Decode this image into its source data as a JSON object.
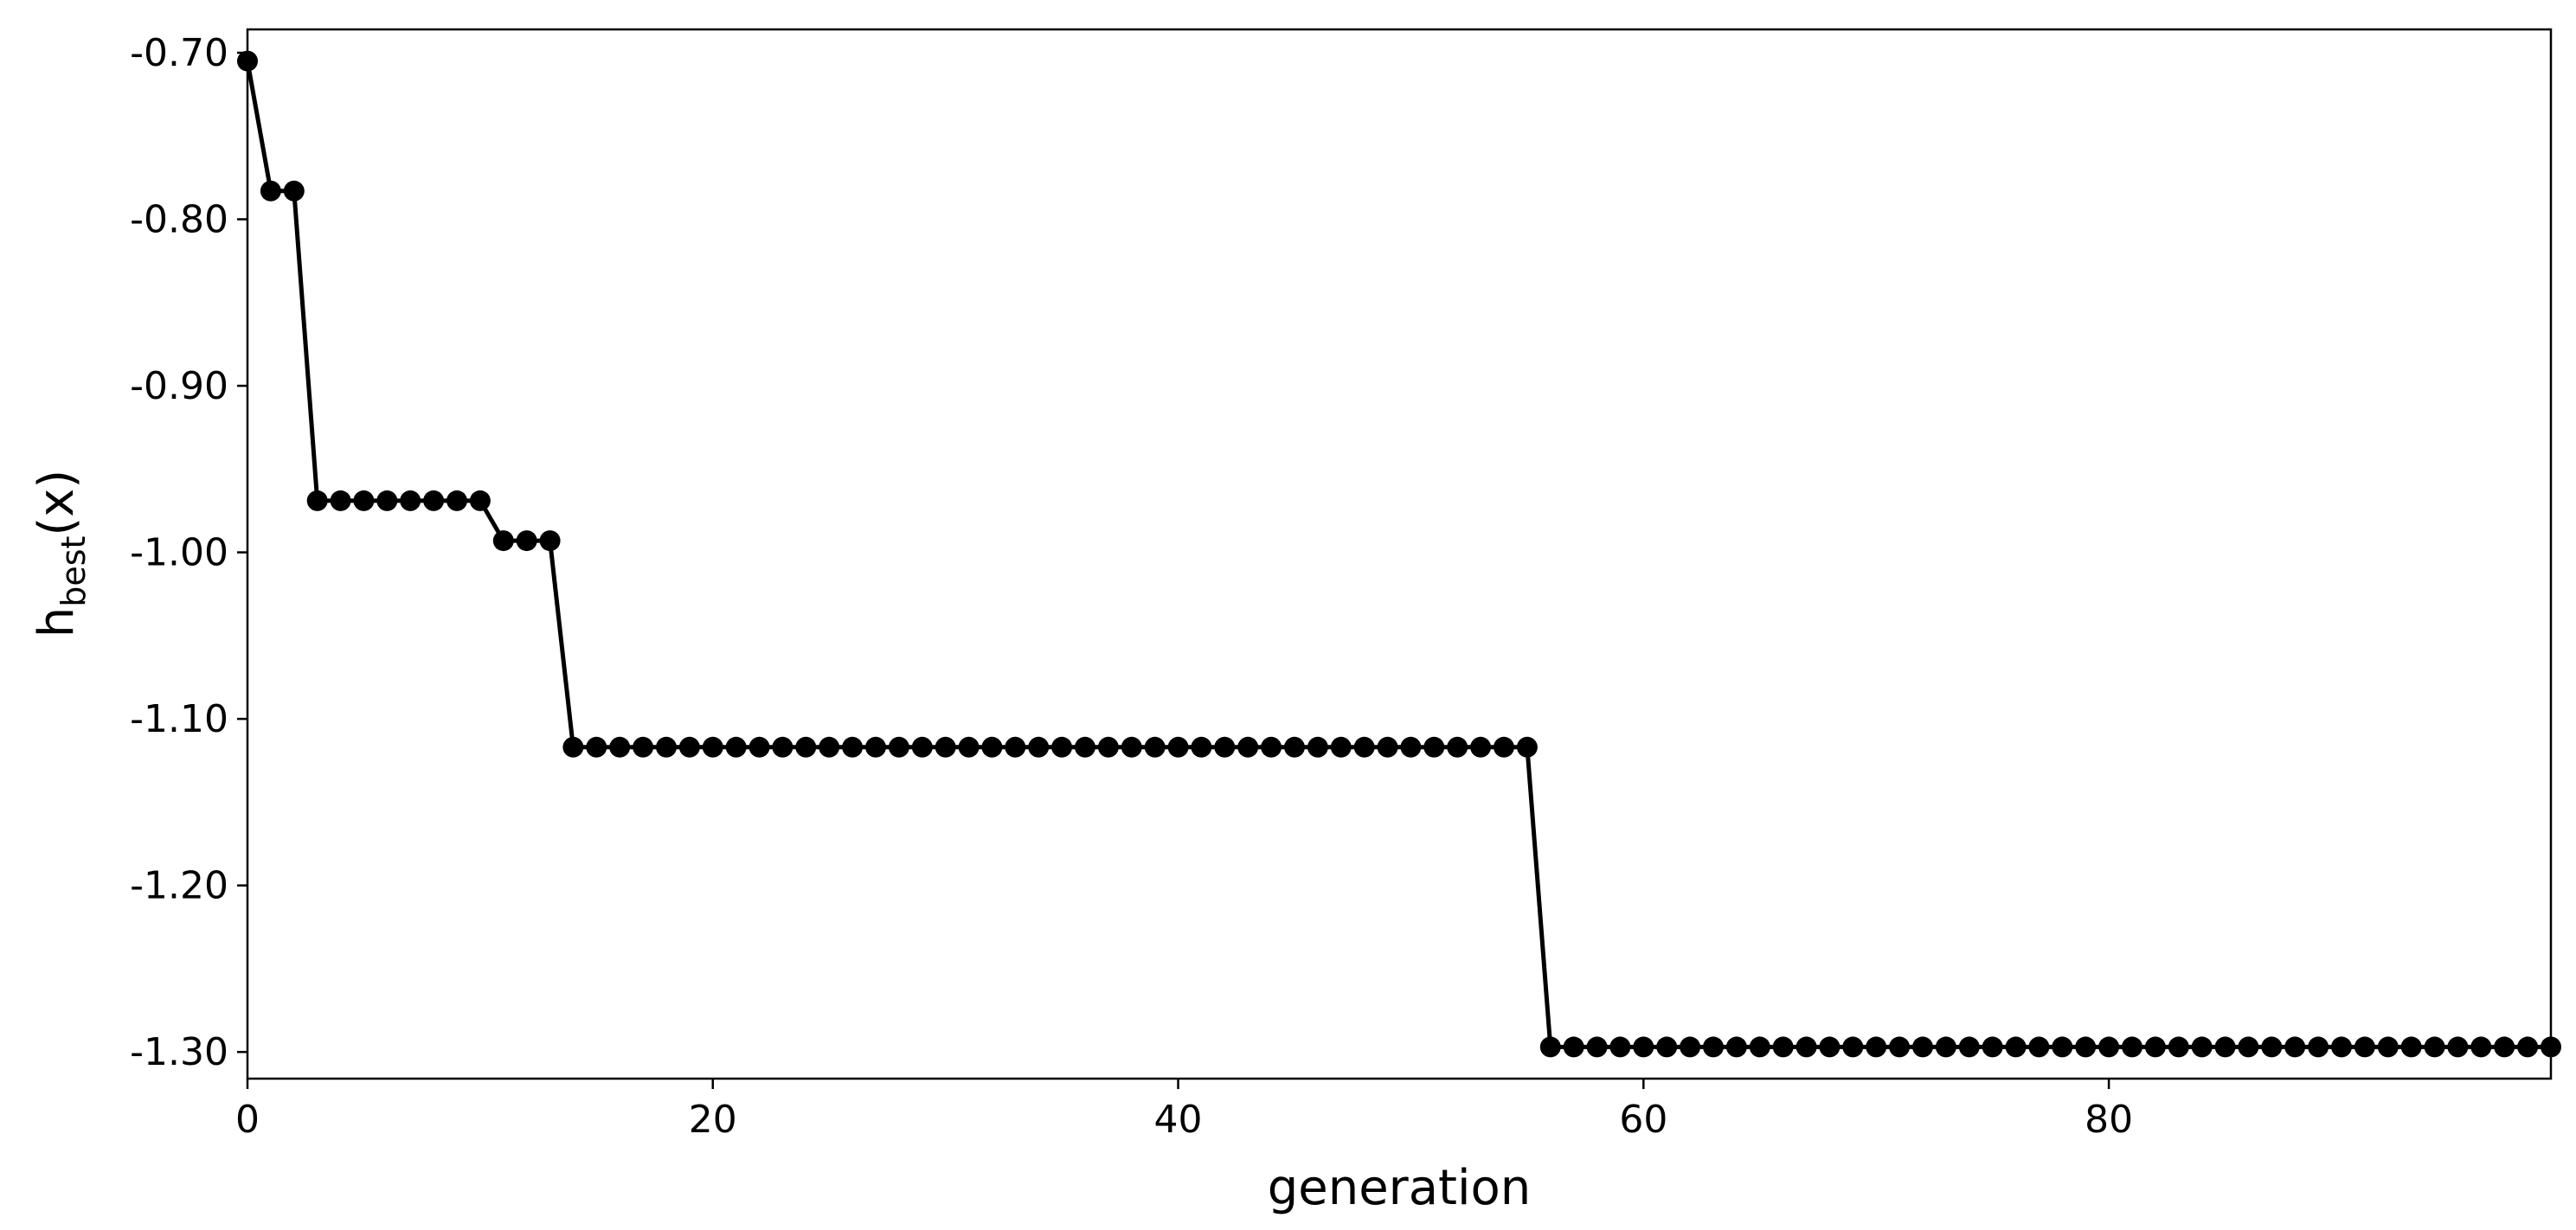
{
  "chart_data": {
    "type": "line",
    "title": "",
    "xlabel": "generation",
    "ylabel": {
      "main": "h",
      "sub": "best",
      "suffix": "(x)"
    },
    "xlim": [
      0,
      99
    ],
    "ylim": [
      -1.316,
      -0.686
    ],
    "xticks": [
      0,
      20,
      40,
      60,
      80
    ],
    "xtick_labels": [
      "0",
      "20",
      "40",
      "60",
      "80"
    ],
    "yticks": [
      -0.7,
      -0.8,
      -0.9,
      -1.0,
      -1.1,
      -1.2,
      -1.3
    ],
    "ytick_labels": [
      "-0.70",
      "-0.80",
      "-0.90",
      "-1.00",
      "-1.10",
      "-1.20",
      "-1.30"
    ],
    "grid": false,
    "series": [
      {
        "color": "#000000",
        "marker": "circle",
        "segments": [
          {
            "x_start": 0,
            "x_end": 0,
            "y": -0.705
          },
          {
            "x_start": 1,
            "x_end": 2,
            "y": -0.783
          },
          {
            "x_start": 3,
            "x_end": 10,
            "y": -0.969
          },
          {
            "x_start": 11,
            "x_end": 13,
            "y": -0.993
          },
          {
            "x_start": 14,
            "x_end": 55,
            "y": -1.117
          },
          {
            "x_start": 56,
            "x_end": 99,
            "y": -1.297
          }
        ]
      }
    ]
  }
}
